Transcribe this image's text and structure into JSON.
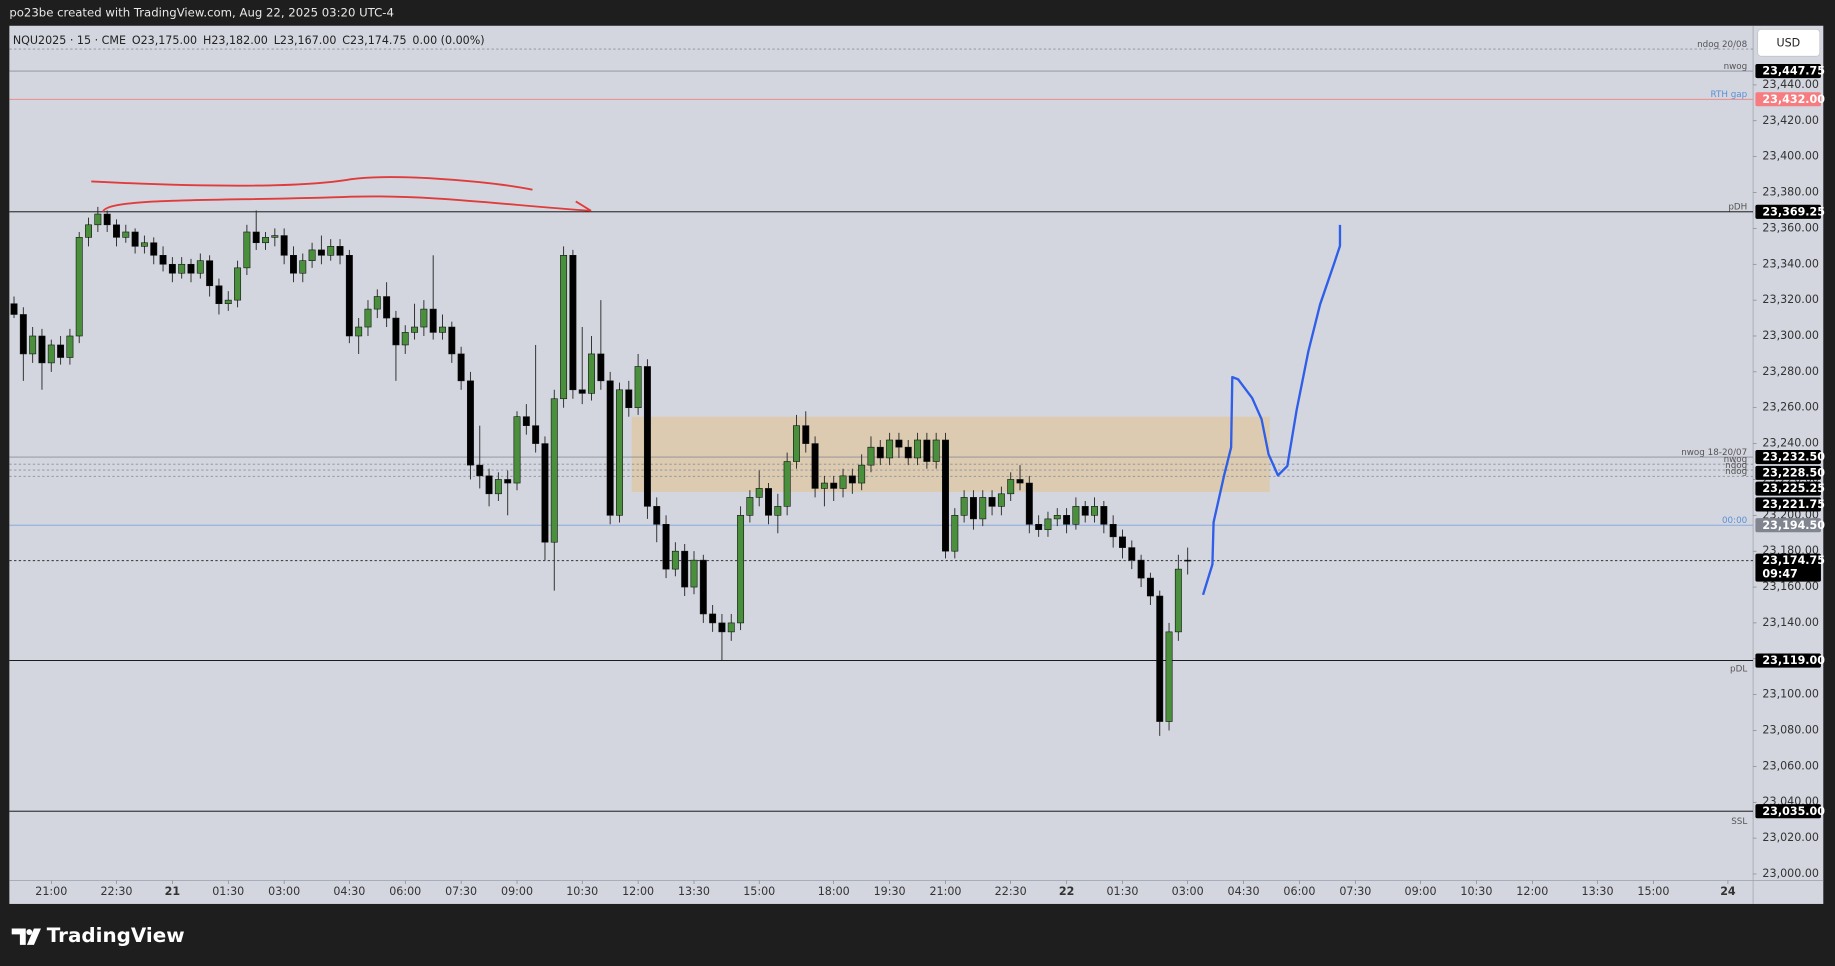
{
  "header": "po23be created with TradingView.com, Aug 22, 2025 03:20 UTC-4",
  "currency": "USD",
  "footer": "TradingView",
  "chart_data": {
    "type": "candlestick",
    "legend": [
      "NQU2025 · 15 · CME",
      "O23,175.00",
      "H23,182.00",
      "L23,167.00",
      "C23,174.75",
      "0.00 (0.00%)"
    ],
    "up_color": "#4a8f3c",
    "down_color": "#000000",
    "wick_color": "#2a2a2a",
    "grid": false,
    "xlim": [
      -0.5,
      186.7
    ],
    "ylim": [
      22997,
      23473
    ],
    "xticks": [
      {
        "value": 4,
        "label": "21:00"
      },
      {
        "value": 11,
        "label": "22:30"
      },
      {
        "value": 17,
        "label": "21"
      },
      {
        "value": 23,
        "label": "01:30"
      },
      {
        "value": 29,
        "label": "03:00"
      },
      {
        "value": 36,
        "label": "04:30"
      },
      {
        "value": 42,
        "label": "06:00"
      },
      {
        "value": 48,
        "label": "07:30"
      },
      {
        "value": 54,
        "label": "09:00"
      },
      {
        "value": 61,
        "label": "10:30"
      },
      {
        "value": 67,
        "label": "12:00"
      },
      {
        "value": 73,
        "label": "13:30"
      },
      {
        "value": 80,
        "label": "15:00"
      },
      {
        "value": 88,
        "label": "18:00"
      },
      {
        "value": 94,
        "label": "19:30"
      },
      {
        "value": 100,
        "label": "21:00"
      },
      {
        "value": 107,
        "label": "22:30"
      },
      {
        "value": 113,
        "label": "22"
      },
      {
        "value": 119,
        "label": "01:30"
      },
      {
        "value": 126,
        "label": "03:00"
      },
      {
        "value": 132,
        "label": "04:30"
      },
      {
        "value": 138,
        "label": "06:00"
      },
      {
        "value": 144,
        "label": "07:30"
      },
      {
        "value": 151,
        "label": "09:00"
      },
      {
        "value": 157,
        "label": "10:30"
      },
      {
        "value": 163,
        "label": "12:00"
      },
      {
        "value": 170,
        "label": "13:30"
      },
      {
        "value": 176,
        "label": "15:00"
      },
      {
        "value": 184,
        "label": "24"
      }
    ],
    "yticks": [
      {
        "value": 23000,
        "label": "23,000.00"
      },
      {
        "value": 23020,
        "label": "23,020.00"
      },
      {
        "value": 23040,
        "label": "23,040.00"
      },
      {
        "value": 23060,
        "label": "23,060.00"
      },
      {
        "value": 23080,
        "label": "23,080.00"
      },
      {
        "value": 23100,
        "label": "23,100.00"
      },
      {
        "value": 23120,
        "label": "23,120.00"
      },
      {
        "value": 23140,
        "label": "23,140.00"
      },
      {
        "value": 23160,
        "label": "23,160.00"
      },
      {
        "value": 23180,
        "label": "23,180.00"
      },
      {
        "value": 23200,
        "label": "23,200.00"
      },
      {
        "value": 23220,
        "label": "23,220.00"
      },
      {
        "value": 23240,
        "label": "23,240.00"
      },
      {
        "value": 23260,
        "label": "23,260.00"
      },
      {
        "value": 23280,
        "label": "23,280.00"
      },
      {
        "value": 23300,
        "label": "23,300.00"
      },
      {
        "value": 23320,
        "label": "23,320.00"
      },
      {
        "value": 23340,
        "label": "23,340.00"
      },
      {
        "value": 23360,
        "label": "23,360.00"
      },
      {
        "value": 23380,
        "label": "23,380.00"
      },
      {
        "value": 23400,
        "label": "23,400.00"
      },
      {
        "value": 23420,
        "label": "23,420.00"
      },
      {
        "value": 23440,
        "label": "23,440.00"
      }
    ],
    "zone": {
      "top": 23255,
      "bottom": 23213,
      "from": 66.3,
      "to": 134.8,
      "color": "#ddc9a8"
    },
    "levels": [
      {
        "name": "ndog 20/08",
        "value": 23460,
        "color": "#8a8f99",
        "dash": true
      },
      {
        "name": "nwog",
        "value": 23447.75,
        "label": "23,447.75",
        "color": "#8a8f99",
        "box": "#000000"
      },
      {
        "name": "RTH gap",
        "value": 23432,
        "label": "23,432.00",
        "color": "#f08080",
        "box": "#f77c80",
        "name_color": "#5b8fd6"
      },
      {
        "name": "pDH",
        "value": 23369.25,
        "label": "23,369.25",
        "color": "#000000",
        "box": "#000000"
      },
      {
        "name": "nwog 18-20/07",
        "value": 23232.5,
        "label": "23,232.50",
        "color": "#8a8f99",
        "box": "#000000"
      },
      {
        "name": "nwog",
        "value": 23228.5,
        "label": "23,228.50",
        "color": "#8a8f99",
        "box": "#000000",
        "dash": true
      },
      {
        "name": "ndog",
        "value": 23225.25,
        "label": "23,225.25",
        "color": "#8a8f99",
        "box": "#000000",
        "dash": true
      },
      {
        "name": "ndog",
        "value": 23221.75,
        "label": "23,221.75",
        "color": "#8a8f99",
        "box": "#000000",
        "dash": true
      },
      {
        "name": "00:00",
        "value": 23194.5,
        "label": "23,194.50",
        "color": "#7fa3d9",
        "box": "#808590",
        "name_color": "#5b8fd6"
      },
      {
        "value": 23174.75,
        "label": "23,174.75",
        "countdown": "09:47",
        "color": "#333333",
        "box": "#000000",
        "dash": true
      },
      {
        "name": "pDL",
        "value": 23119,
        "label": "23,119.00",
        "color": "#000000",
        "box": "#000000"
      },
      {
        "name": "SSL",
        "value": 23035,
        "label": "23,035.00",
        "color": "#000000",
        "box": "#000000"
      }
    ],
    "ohlc": [
      [
        23318,
        23322,
        23310,
        23312
      ],
      [
        23312,
        23316,
        23275,
        23290
      ],
      [
        23290,
        23305,
        23285,
        23300
      ],
      [
        23300,
        23304,
        23270,
        23285
      ],
      [
        23285,
        23298,
        23280,
        23295
      ],
      [
        23295,
        23300,
        23284,
        23288
      ],
      [
        23288,
        23304,
        23284,
        23300
      ],
      [
        23300,
        23358,
        23296,
        23355
      ],
      [
        23355,
        23366,
        23350,
        23362
      ],
      [
        23362,
        23372,
        23358,
        23368
      ],
      [
        23368,
        23370,
        23358,
        23362
      ],
      [
        23362,
        23365,
        23350,
        23355
      ],
      [
        23355,
        23362,
        23352,
        23358
      ],
      [
        23358,
        23360,
        23346,
        23350
      ],
      [
        23350,
        23356,
        23346,
        23352
      ],
      [
        23352,
        23355,
        23340,
        23345
      ],
      [
        23345,
        23350,
        23336,
        23340
      ],
      [
        23340,
        23344,
        23330,
        23335
      ],
      [
        23335,
        23344,
        23332,
        23340
      ],
      [
        23340,
        23343,
        23330,
        23335
      ],
      [
        23335,
        23346,
        23332,
        23342
      ],
      [
        23342,
        23345,
        23322,
        23328
      ],
      [
        23328,
        23332,
        23312,
        23318
      ],
      [
        23318,
        23325,
        23314,
        23320
      ],
      [
        23320,
        23342,
        23316,
        23338
      ],
      [
        23338,
        23362,
        23334,
        23358
      ],
      [
        23358,
        23370,
        23348,
        23352
      ],
      [
        23352,
        23358,
        23348,
        23355
      ],
      [
        23355,
        23360,
        23350,
        23356
      ],
      [
        23356,
        23360,
        23340,
        23345
      ],
      [
        23345,
        23350,
        23330,
        23335
      ],
      [
        23335,
        23346,
        23330,
        23342
      ],
      [
        23342,
        23352,
        23338,
        23348
      ],
      [
        23348,
        23356,
        23340,
        23345
      ],
      [
        23345,
        23354,
        23342,
        23350
      ],
      [
        23350,
        23354,
        23340,
        23345
      ],
      [
        23345,
        23348,
        23296,
        23300
      ],
      [
        23300,
        23310,
        23290,
        23305
      ],
      [
        23305,
        23320,
        23300,
        23315
      ],
      [
        23315,
        23326,
        23310,
        23322
      ],
      [
        23322,
        23330,
        23305,
        23310
      ],
      [
        23310,
        23314,
        23275,
        23295
      ],
      [
        23295,
        23306,
        23290,
        23302
      ],
      [
        23302,
        23318,
        23298,
        23305
      ],
      [
        23305,
        23320,
        23300,
        23315
      ],
      [
        23315,
        23345,
        23298,
        23302
      ],
      [
        23302,
        23312,
        23298,
        23305
      ],
      [
        23305,
        23308,
        23285,
        23290
      ],
      [
        23290,
        23294,
        23270,
        23275
      ],
      [
        23275,
        23280,
        23220,
        23228
      ],
      [
        23228,
        23250,
        23215,
        23222
      ],
      [
        23222,
        23226,
        23205,
        23212
      ],
      [
        23212,
        23224,
        23208,
        23220
      ],
      [
        23220,
        23225,
        23200,
        23218
      ],
      [
        23218,
        23258,
        23214,
        23255
      ],
      [
        23255,
        23262,
        23245,
        23250
      ],
      [
        23250,
        23295,
        23235,
        23240
      ],
      [
        23240,
        23244,
        23175,
        23185
      ],
      [
        23185,
        23270,
        23158,
        23265
      ],
      [
        23265,
        23350,
        23260,
        23345
      ],
      [
        23345,
        23348,
        23265,
        23270
      ],
      [
        23270,
        23305,
        23262,
        23268
      ],
      [
        23268,
        23300,
        23264,
        23290
      ],
      [
        23290,
        23320,
        23270,
        23275
      ],
      [
        23275,
        23280,
        23195,
        23200
      ],
      [
        23200,
        23274,
        23196,
        23270
      ],
      [
        23270,
        23275,
        23255,
        23260
      ],
      [
        23260,
        23290,
        23256,
        23283
      ],
      [
        23283,
        23287,
        23198,
        23205
      ],
      [
        23205,
        23210,
        23185,
        23195
      ],
      [
        23195,
        23200,
        23165,
        23170
      ],
      [
        23170,
        23185,
        23166,
        23180
      ],
      [
        23180,
        23184,
        23155,
        23160
      ],
      [
        23160,
        23180,
        23156,
        23175
      ],
      [
        23175,
        23178,
        23140,
        23145
      ],
      [
        23145,
        23150,
        23135,
        23140
      ],
      [
        23140,
        23145,
        23119,
        23135
      ],
      [
        23135,
        23145,
        23130,
        23140
      ],
      [
        23140,
        23205,
        23136,
        23200
      ],
      [
        23200,
        23214,
        23196,
        23210
      ],
      [
        23210,
        23225,
        23205,
        23215
      ],
      [
        23215,
        23218,
        23195,
        23200
      ],
      [
        23200,
        23212,
        23190,
        23205
      ],
      [
        23205,
        23235,
        23200,
        23230
      ],
      [
        23230,
        23256,
        23226,
        23250
      ],
      [
        23250,
        23258,
        23235,
        23240
      ],
      [
        23240,
        23244,
        23210,
        23215
      ],
      [
        23215,
        23222,
        23205,
        23218
      ],
      [
        23218,
        23222,
        23208,
        23215
      ],
      [
        23215,
        23226,
        23210,
        23222
      ],
      [
        23222,
        23226,
        23212,
        23218
      ],
      [
        23218,
        23234,
        23214,
        23228
      ],
      [
        23228,
        23244,
        23224,
        23238
      ],
      [
        23238,
        23242,
        23228,
        23232
      ],
      [
        23232,
        23246,
        23228,
        23242
      ],
      [
        23242,
        23246,
        23232,
        23238
      ],
      [
        23238,
        23242,
        23228,
        23232
      ],
      [
        23232,
        23246,
        23228,
        23242
      ],
      [
        23242,
        23246,
        23226,
        23230
      ],
      [
        23230,
        23246,
        23226,
        23242
      ],
      [
        23242,
        23246,
        23176,
        23180
      ],
      [
        23180,
        23204,
        23176,
        23200
      ],
      [
        23200,
        23214,
        23196,
        23210
      ],
      [
        23210,
        23214,
        23192,
        23198
      ],
      [
        23198,
        23214,
        23194,
        23210
      ],
      [
        23210,
        23214,
        23200,
        23205
      ],
      [
        23205,
        23216,
        23200,
        23212
      ],
      [
        23212,
        23224,
        23208,
        23220
      ],
      [
        23220,
        23228,
        23214,
        23218
      ],
      [
        23218,
        23222,
        23190,
        23195
      ],
      [
        23195,
        23200,
        23188,
        23192
      ],
      [
        23192,
        23202,
        23188,
        23198
      ],
      [
        23198,
        23204,
        23194,
        23200
      ],
      [
        23200,
        23204,
        23190,
        23195
      ],
      [
        23195,
        23210,
        23192,
        23205
      ],
      [
        23205,
        23208,
        23196,
        23200
      ],
      [
        23200,
        23210,
        23196,
        23205
      ],
      [
        23205,
        23208,
        23190,
        23195
      ],
      [
        23195,
        23200,
        23182,
        23188
      ],
      [
        23188,
        23192,
        23176,
        23182
      ],
      [
        23182,
        23186,
        23170,
        23175
      ],
      [
        23175,
        23178,
        23160,
        23165
      ],
      [
        23165,
        23168,
        23150,
        23155
      ],
      [
        23155,
        23158,
        23077,
        23085
      ],
      [
        23085,
        23140,
        23080,
        23135
      ],
      [
        23135,
        23178,
        23130,
        23170
      ],
      [
        23175,
        23182,
        23167,
        23174.75
      ]
    ]
  }
}
